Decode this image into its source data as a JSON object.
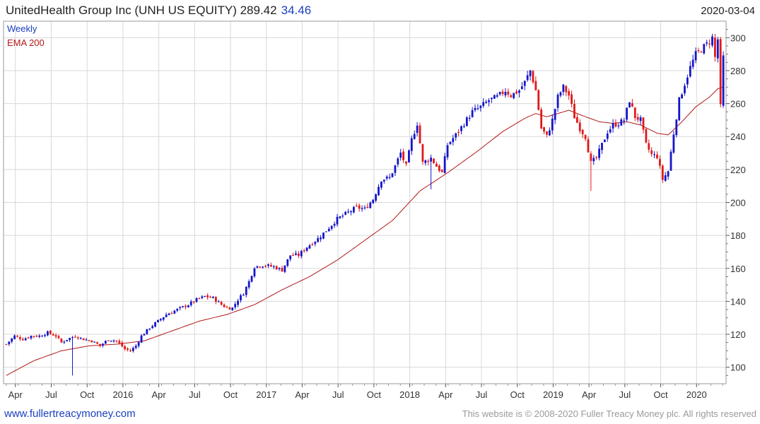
{
  "header": {
    "title": "UnitedHealth Group Inc (UNH US EQUITY) 289.42",
    "change": "34.46",
    "date": "2020-03-04"
  },
  "legend": {
    "series_label": "Weekly",
    "ema_label": "EMA 200"
  },
  "footer": {
    "website": "www.fullertreacymoney.com",
    "copyright": "This website is © 2008-2020 Fuller Treacy Money plc. All rights reserved"
  },
  "colors": {
    "up": "#1515c8",
    "down": "#e01919",
    "ema": "#b01818",
    "grid": "#d8d8d8",
    "title_change": "#1a3fbf",
    "legend_weekly": "#1a3fbf",
    "legend_ema": "#b01818"
  },
  "chart_data": {
    "type": "candlestick",
    "frequency": "weekly",
    "ylim": [
      90,
      310
    ],
    "yticks": [
      100,
      120,
      140,
      160,
      180,
      200,
      220,
      240,
      260,
      280,
      300
    ],
    "xlim_week_index": [
      -1,
      261
    ],
    "xticks": [
      {
        "label": "Apr",
        "week": 3.3
      },
      {
        "label": "Jul",
        "week": 16.3
      },
      {
        "label": "Oct",
        "week": 29.3
      },
      {
        "label": "2016",
        "week": 42.3
      },
      {
        "label": "Apr",
        "week": 55.3
      },
      {
        "label": "Jul",
        "week": 68.3
      },
      {
        "label": "Oct",
        "week": 81.3
      },
      {
        "label": "2017",
        "week": 94.3
      },
      {
        "label": "Apr",
        "week": 107.3
      },
      {
        "label": "Jul",
        "week": 120.3
      },
      {
        "label": "Oct",
        "week": 133.3
      },
      {
        "label": "2018",
        "week": 146.3
      },
      {
        "label": "Apr",
        "week": 159.3
      },
      {
        "label": "Jul",
        "week": 172.3
      },
      {
        "label": "Oct",
        "week": 185.3
      },
      {
        "label": "2019",
        "week": 198.3
      },
      {
        "label": "Apr",
        "week": 211.3
      },
      {
        "label": "Jul",
        "week": 224.3
      },
      {
        "label": "Oct",
        "week": 237.3
      },
      {
        "label": "2020",
        "week": 250.3
      }
    ],
    "close_anchors": [
      [
        0,
        114
      ],
      [
        3,
        119
      ],
      [
        6,
        117
      ],
      [
        9,
        119
      ],
      [
        12,
        119
      ],
      [
        15,
        121
      ],
      [
        18,
        119
      ],
      [
        20,
        115
      ],
      [
        22,
        117
      ],
      [
        25,
        119
      ],
      [
        28,
        117
      ],
      [
        31,
        116
      ],
      [
        34,
        113
      ],
      [
        37,
        117
      ],
      [
        40,
        116
      ],
      [
        43,
        111
      ],
      [
        45,
        110
      ],
      [
        47,
        113
      ],
      [
        49,
        119
      ],
      [
        52,
        124
      ],
      [
        55,
        128
      ],
      [
        58,
        132
      ],
      [
        62,
        135
      ],
      [
        66,
        138
      ],
      [
        69,
        141
      ],
      [
        72,
        143
      ],
      [
        75,
        142
      ],
      [
        78,
        138
      ],
      [
        80,
        136
      ],
      [
        82,
        136
      ],
      [
        84,
        141
      ],
      [
        86,
        145
      ],
      [
        88,
        152
      ],
      [
        90,
        161
      ],
      [
        93,
        162
      ],
      [
        97,
        161
      ],
      [
        100,
        159
      ],
      [
        103,
        168
      ],
      [
        106,
        168
      ],
      [
        109,
        173
      ],
      [
        113,
        178
      ],
      [
        116,
        183
      ],
      [
        120,
        190
      ],
      [
        124,
        194
      ],
      [
        127,
        197
      ],
      [
        130,
        196
      ],
      [
        133,
        202
      ],
      [
        136,
        214
      ],
      [
        139,
        215
      ],
      [
        141,
        222
      ],
      [
        143,
        230
      ],
      [
        145,
        222
      ],
      [
        147,
        238
      ],
      [
        149,
        248
      ],
      [
        151,
        224
      ],
      [
        154,
        227
      ],
      [
        156,
        222
      ],
      [
        158,
        218
      ],
      [
        160,
        235
      ],
      [
        163,
        241
      ],
      [
        166,
        248
      ],
      [
        169,
        255
      ],
      [
        172,
        258
      ],
      [
        175,
        262
      ],
      [
        178,
        264
      ],
      [
        181,
        268
      ],
      [
        183,
        265
      ],
      [
        186,
        268
      ],
      [
        188,
        273
      ],
      [
        190,
        280
      ],
      [
        192,
        268
      ],
      [
        194,
        245
      ],
      [
        196,
        240
      ],
      [
        198,
        250
      ],
      [
        200,
        264
      ],
      [
        202,
        270
      ],
      [
        204,
        265
      ],
      [
        206,
        252
      ],
      [
        208,
        245
      ],
      [
        210,
        240
      ],
      [
        212,
        224
      ],
      [
        214,
        227
      ],
      [
        216,
        235
      ],
      [
        218,
        243
      ],
      [
        220,
        247
      ],
      [
        222,
        248
      ],
      [
        224,
        250
      ],
      [
        226,
        262
      ],
      [
        228,
        252
      ],
      [
        230,
        250
      ],
      [
        232,
        235
      ],
      [
        234,
        229
      ],
      [
        236,
        228
      ],
      [
        238,
        214
      ],
      [
        240,
        219
      ],
      [
        242,
        242
      ],
      [
        244,
        262
      ],
      [
        246,
        272
      ],
      [
        248,
        282
      ],
      [
        250,
        290
      ],
      [
        252,
        293
      ],
      [
        254,
        296
      ],
      [
        256,
        300
      ],
      [
        257,
        288
      ],
      [
        258,
        299
      ],
      [
        259,
        258
      ],
      [
        260,
        288
      ]
    ],
    "ema_anchors": [
      [
        0,
        95
      ],
      [
        10,
        104
      ],
      [
        20,
        110
      ],
      [
        30,
        113
      ],
      [
        40,
        114
      ],
      [
        50,
        116
      ],
      [
        60,
        122
      ],
      [
        70,
        128
      ],
      [
        80,
        132
      ],
      [
        90,
        138
      ],
      [
        100,
        147
      ],
      [
        110,
        155
      ],
      [
        120,
        165
      ],
      [
        130,
        177
      ],
      [
        140,
        189
      ],
      [
        150,
        207
      ],
      [
        160,
        218
      ],
      [
        170,
        230
      ],
      [
        180,
        243
      ],
      [
        188,
        251
      ],
      [
        192,
        254
      ],
      [
        196,
        252
      ],
      [
        200,
        254
      ],
      [
        204,
        256
      ],
      [
        210,
        252
      ],
      [
        215,
        249
      ],
      [
        220,
        248
      ],
      [
        225,
        249
      ],
      [
        230,
        247
      ],
      [
        236,
        242
      ],
      [
        240,
        241
      ],
      [
        245,
        249
      ],
      [
        250,
        258
      ],
      [
        255,
        264
      ],
      [
        258,
        269
      ],
      [
        260,
        270
      ]
    ],
    "spikes": [
      {
        "week": 24,
        "low": 95
      },
      {
        "week": 212,
        "low": 207
      },
      {
        "week": 154,
        "low": 208
      }
    ]
  }
}
